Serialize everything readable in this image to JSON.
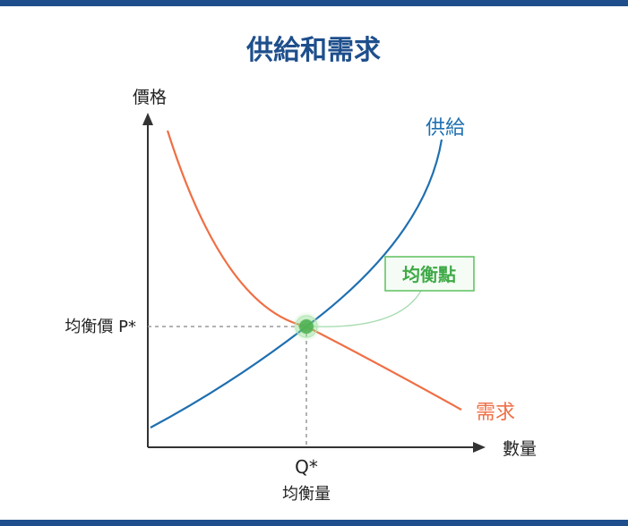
{
  "title": "供給和需求",
  "axes": {
    "y_label": "價格",
    "x_label": "數量"
  },
  "curves": {
    "supply_label": "供給",
    "demand_label": "需求"
  },
  "equilibrium": {
    "badge": "均衡點",
    "price_label": "均衡價 P*",
    "quantity_symbol": "Q*",
    "quantity_label": "均衡量"
  },
  "colors": {
    "title": "#1e4f8c",
    "frame_bar": "#1e4f8c",
    "supply": "#1e6fb0",
    "demand": "#ef6f45",
    "equilibrium": "#5cc15e",
    "axis": "#333333",
    "guide": "#999999"
  }
}
